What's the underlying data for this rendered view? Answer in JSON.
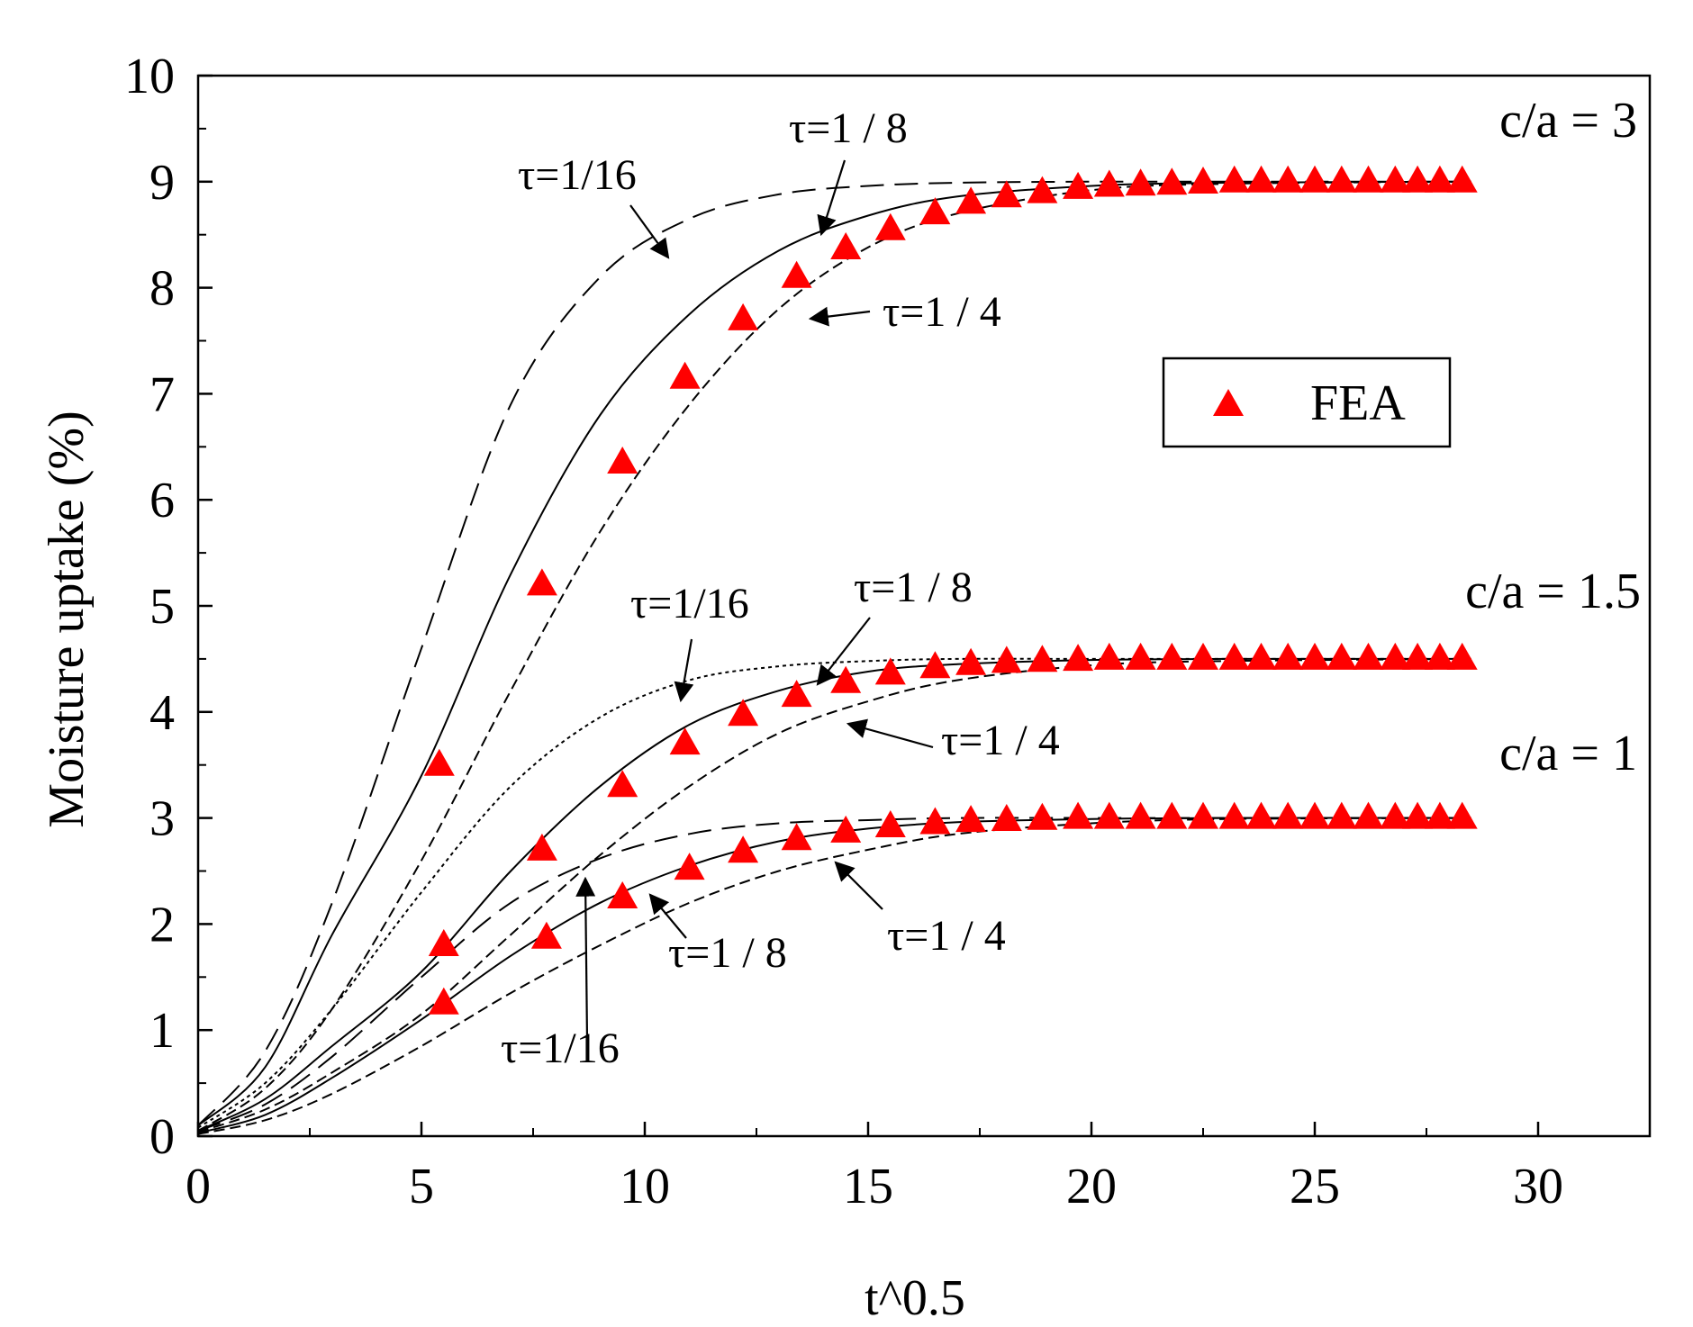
{
  "chart_data": {
    "type": "line",
    "title": "",
    "xlabel": "t^0.5",
    "ylabel": "Moisture uptake (%)",
    "xlim": [
      0,
      32.5
    ],
    "ylim": [
      0,
      10
    ],
    "xticks": [
      0,
      5,
      10,
      15,
      20,
      25,
      30
    ],
    "yticks": [
      0,
      1,
      2,
      3,
      4,
      5,
      6,
      7,
      8,
      9,
      10
    ],
    "grid": false,
    "legend": {
      "position": "right-middle",
      "entries": [
        "FEA"
      ]
    },
    "colors": {
      "fea": "#ff0000",
      "lines": "#000000"
    },
    "groups": [
      {
        "label": "c/a = 3",
        "saturation": 9,
        "series": [
          {
            "name": "τ=1/16",
            "style": "dashed-long",
            "x": [
              0,
              1.5,
              3,
              5,
              7,
              9,
              11,
              13,
              15,
              17,
              20,
              23,
              28.5
            ],
            "y": [
              0.1,
              0.8,
              2.2,
              4.6,
              6.9,
              8.1,
              8.65,
              8.88,
              8.96,
              8.99,
              9,
              9,
              9
            ]
          },
          {
            "name": "τ=1/8",
            "style": "solid",
            "x": [
              0,
              1.5,
              3,
              5,
              7,
              9,
              11,
              13,
              15,
              17,
              20,
              23,
              28.5
            ],
            "y": [
              0.1,
              0.65,
              1.9,
              3.4,
              5.3,
              6.8,
              7.75,
              8.35,
              8.68,
              8.86,
              8.96,
              8.99,
              9
            ]
          },
          {
            "name": "τ=1/4",
            "style": "dashed-short",
            "x": [
              0,
              1.5,
              3,
              5,
              7,
              9,
              11,
              13,
              15,
              17,
              20,
              23,
              28.5
            ],
            "y": [
              0.05,
              0.45,
              1.2,
              2.6,
              4.2,
              5.7,
              6.9,
              7.8,
              8.38,
              8.7,
              8.92,
              8.98,
              9
            ]
          }
        ],
        "fea": {
          "x": [
            5.4,
            7.7,
            9.5,
            10.9,
            12.2,
            13.4,
            14.5,
            15.5,
            16.5,
            17.3,
            18.1,
            18.9,
            19.7,
            20.4,
            21.1,
            21.8,
            22.5,
            23.2,
            23.8,
            24.4,
            25,
            25.6,
            26.2,
            26.8,
            27.3,
            27.8,
            28.3
          ],
          "y": [
            3.5,
            5.2,
            6.35,
            7.15,
            7.7,
            8.1,
            8.37,
            8.55,
            8.7,
            8.8,
            8.86,
            8.9,
            8.94,
            8.96,
            8.97,
            8.98,
            8.99,
            9,
            9,
            9,
            9,
            9,
            9,
            9,
            9,
            9,
            9
          ]
        },
        "annotations": [
          {
            "text": "τ=1/16",
            "series": "τ=1/16"
          },
          {
            "text": "τ=1 / 8",
            "series": "τ=1/8"
          },
          {
            "text": "τ=1 / 4",
            "series": "τ=1/4"
          }
        ]
      },
      {
        "label": "c/a = 1.5",
        "saturation": 4.5,
        "series": [
          {
            "name": "τ=1/16",
            "style": "dotted",
            "x": [
              0,
              1.5,
              3,
              5,
              7,
              9,
              11,
              13,
              15,
              17,
              20,
              23,
              28.5
            ],
            "y": [
              0.08,
              0.5,
              1.2,
              2.3,
              3.3,
              3.95,
              4.3,
              4.43,
              4.48,
              4.5,
              4.5,
              4.5,
              4.5
            ]
          },
          {
            "name": "τ=1/8",
            "style": "solid",
            "x": [
              0,
              1.5,
              3,
              5,
              7,
              9,
              11,
              13,
              15,
              17,
              20,
              23,
              28.5
            ],
            "y": [
              0.05,
              0.35,
              0.85,
              1.55,
              2.5,
              3.3,
              3.88,
              4.2,
              4.38,
              4.45,
              4.49,
              4.5,
              4.5
            ]
          },
          {
            "name": "τ=1/4",
            "style": "dashed-short",
            "x": [
              0,
              1.5,
              3,
              5,
              7,
              9,
              11,
              13,
              15,
              17,
              20,
              23,
              28.5
            ],
            "y": [
              0.04,
              0.25,
              0.6,
              1.15,
              1.9,
              2.65,
              3.3,
              3.8,
              4.1,
              4.3,
              4.44,
              4.48,
              4.5
            ]
          }
        ],
        "fea": {
          "x": [
            5.5,
            7.7,
            9.5,
            10.9,
            12.2,
            13.4,
            14.5,
            15.5,
            16.5,
            17.3,
            18.1,
            18.9,
            19.7,
            20.4,
            21.1,
            21.8,
            22.5,
            23.2,
            23.8,
            24.4,
            25,
            25.6,
            26.2,
            26.8,
            27.3,
            27.8,
            28.3
          ],
          "y": [
            1.8,
            2.7,
            3.3,
            3.7,
            3.97,
            4.15,
            4.28,
            4.36,
            4.42,
            4.45,
            4.47,
            4.48,
            4.49,
            4.5,
            4.5,
            4.5,
            4.5,
            4.5,
            4.5,
            4.5,
            4.5,
            4.5,
            4.5,
            4.5,
            4.5,
            4.5,
            4.5
          ]
        },
        "annotations": [
          {
            "text": "τ=1/16",
            "series": "τ=1/16"
          },
          {
            "text": "τ=1 / 8",
            "series": "τ=1/8"
          },
          {
            "text": "τ=1 / 4",
            "series": "τ=1/4"
          }
        ]
      },
      {
        "label": "c/a = 1",
        "saturation": 3,
        "series": [
          {
            "name": "τ=1/16",
            "style": "dashed-long",
            "x": [
              0,
              1.5,
              3,
              5,
              7,
              9,
              11,
              13,
              15,
              17,
              20,
              23,
              28.5
            ],
            "y": [
              0.05,
              0.3,
              0.75,
              1.5,
              2.2,
              2.62,
              2.85,
              2.95,
              2.98,
              3,
              3,
              3,
              3
            ]
          },
          {
            "name": "τ=1/8",
            "style": "solid",
            "x": [
              0,
              1.5,
              3,
              5,
              7,
              9,
              11,
              13,
              15,
              17,
              20,
              23,
              28.5
            ],
            "y": [
              0.03,
              0.2,
              0.55,
              1.1,
              1.7,
              2.2,
              2.55,
              2.78,
              2.9,
              2.96,
              2.99,
              3,
              3
            ]
          },
          {
            "name": "τ=1/4",
            "style": "dashed-short",
            "x": [
              0,
              1.5,
              3,
              5,
              7,
              9,
              11,
              13,
              15,
              17,
              20,
              23,
              28.5
            ],
            "y": [
              0.02,
              0.15,
              0.4,
              0.85,
              1.35,
              1.8,
              2.2,
              2.5,
              2.7,
              2.85,
              2.95,
              2.99,
              3
            ]
          }
        ],
        "fea": {
          "x": [
            5.5,
            7.8,
            9.5,
            11,
            12.2,
            13.4,
            14.5,
            15.5,
            16.5,
            17.3,
            18.1,
            18.9,
            19.7,
            20.4,
            21.1,
            21.8,
            22.5,
            23.2,
            23.8,
            24.4,
            25,
            25.6,
            26.2,
            26.8,
            27.3,
            27.8,
            28.3
          ],
          "y": [
            1.25,
            1.87,
            2.25,
            2.52,
            2.68,
            2.8,
            2.87,
            2.92,
            2.95,
            2.97,
            2.98,
            2.99,
            3,
            3,
            3,
            3,
            3,
            3,
            3,
            3,
            3,
            3,
            3,
            3,
            3,
            3,
            3
          ]
        },
        "annotations": [
          {
            "text": "τ=1/16",
            "series": "τ=1/16"
          },
          {
            "text": "τ=1 / 8",
            "series": "τ=1/8"
          },
          {
            "text": "τ=1 / 4",
            "series": "τ=1/4"
          }
        ]
      }
    ]
  }
}
